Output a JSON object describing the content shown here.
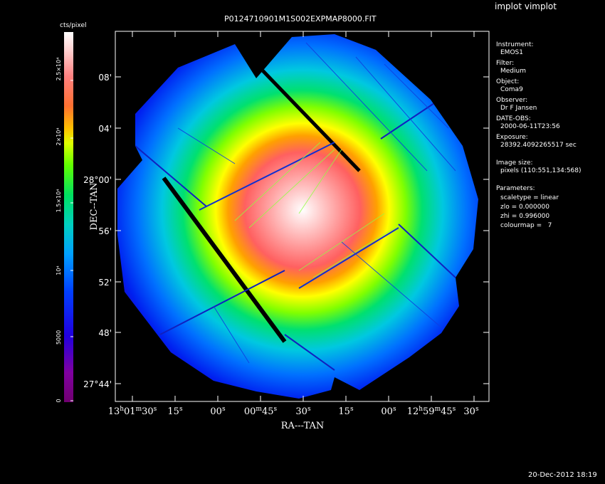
{
  "app": {
    "program_title": "implot vimplot",
    "datetime": "20-Dec-2012 18:19"
  },
  "plot": {
    "title": "P0124710901M1S002EXPMAP8000.FIT",
    "xlabel": "RA---TAN",
    "ylabel": "DEC--TAN",
    "x_ticks": [
      {
        "h": "13",
        "s1": "h",
        "m": "01",
        "s2": "m",
        "sec": "30",
        "s3": "s"
      },
      {
        "sec": "15",
        "s3": "s"
      },
      {
        "sec": "00",
        "s3": "s"
      },
      {
        "m": "00",
        "s2": "m",
        "sec": "45",
        "s3": "s"
      },
      {
        "sec": "30",
        "s3": "s"
      },
      {
        "sec": "15",
        "s3": "s"
      },
      {
        "sec": "00",
        "s3": "s"
      },
      {
        "h": "12",
        "s1": "h",
        "m": "59",
        "s2": "m",
        "sec": "45",
        "s3": "s"
      },
      {
        "sec": "30",
        "s3": "s"
      }
    ],
    "y_ticks": [
      "08'",
      "04'",
      "28°00'",
      "56'",
      "52'",
      "48'",
      "27°44'"
    ]
  },
  "colorbar": {
    "title": "cts/pixel",
    "ticks": [
      "2.5×10⁴",
      "2×10⁴",
      "1.5×10⁴",
      "10⁴",
      "5000",
      "0"
    ],
    "colors": [
      "#700070",
      "#8a0090",
      "#3000d0",
      "#0000ff",
      "#0060ff",
      "#00a0ff",
      "#00d0d0",
      "#00e080",
      "#40f000",
      "#a0ff00",
      "#ffff00",
      "#ffc000",
      "#ff8000",
      "#ff5050",
      "#ff8080",
      "#ffc0c0",
      "#ffffff"
    ]
  },
  "info_panel": {
    "instrument_label": "Instrument:",
    "instrument": "EMOS1",
    "filter_label": "Filter:",
    "filter": "Medium",
    "object_label": "Object:",
    "object": "Coma9",
    "observer_label": "Observer:",
    "observer": "Dr F Jansen",
    "date_label": "DATE-OBS:",
    "date": "2000-06-11T23:56",
    "exposure_label": "Exposure:",
    "exposure": "28392.4092265517 sec",
    "image_size_label": "Image size:",
    "image_size": "pixels (110:551,134:568)",
    "parameters_label": "Parameters:",
    "scaletype": "scaletype = linear",
    "zlo": "zlo = 0.000000",
    "zhi": "zhi = 0.996000",
    "colourmap": "colourmap =   7"
  }
}
